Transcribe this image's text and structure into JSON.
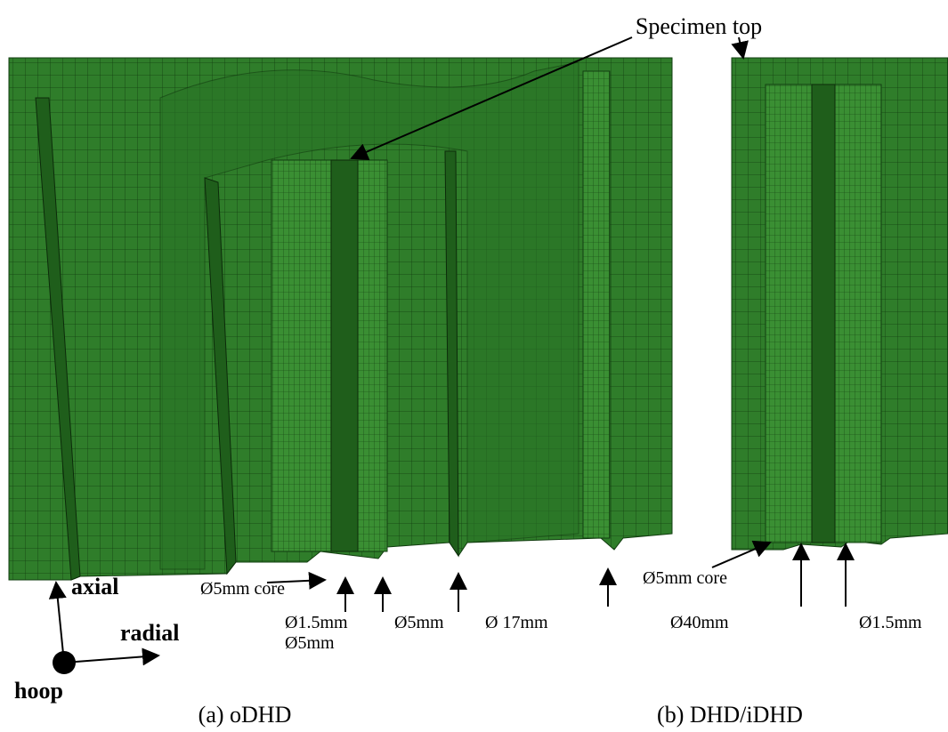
{
  "annotations": {
    "specimen_top": "Specimen top",
    "left": [
      "Ø5mm core",
      "Ø1.5mm",
      "Ø5mm",
      "Ø5mm",
      "Ø 17mm",
      "Ø40mm"
    ],
    "right": [
      "Ø5mm core",
      "Ø1.5mm"
    ]
  },
  "axes": {
    "axial": "axial",
    "radial": "radial",
    "hoop": "hoop"
  },
  "captions": [
    "(a) oDHD",
    "(b) DHD/iDHD"
  ]
}
